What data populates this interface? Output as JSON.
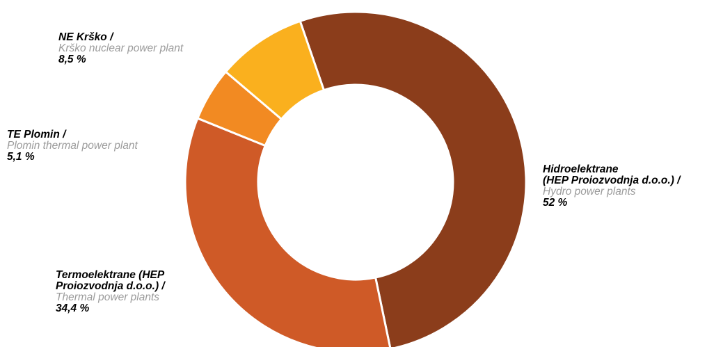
{
  "chart_data": {
    "type": "pie",
    "donut": true,
    "slices": [
      {
        "label_lines": [
          "Hidroelektrane",
          "(HEP Proiozvodnja d.o.o.) /"
        ],
        "label_en": "Hydro power plants",
        "value": 52,
        "value_text": "52 %",
        "color": "#8b3d1b"
      },
      {
        "label_lines": [
          "Termoelektrane (HEP",
          "Proiozvodnja d.o.o.) /"
        ],
        "label_en": "Thermal power plants",
        "value": 34.4,
        "value_text": "34,4 %",
        "color": "#cf5a27"
      },
      {
        "label_lines": [
          "TE Plomin /"
        ],
        "label_en": "Plomin thermal power plant",
        "value": 5.1,
        "value_text": "5,1 %",
        "color": "#f28a22"
      },
      {
        "label_lines": [
          "NE Krško /"
        ],
        "label_en": "Krško nuclear power plant",
        "value": 8.5,
        "value_text": "8,5 %",
        "color": "#fab01e"
      }
    ],
    "legend": "none"
  }
}
